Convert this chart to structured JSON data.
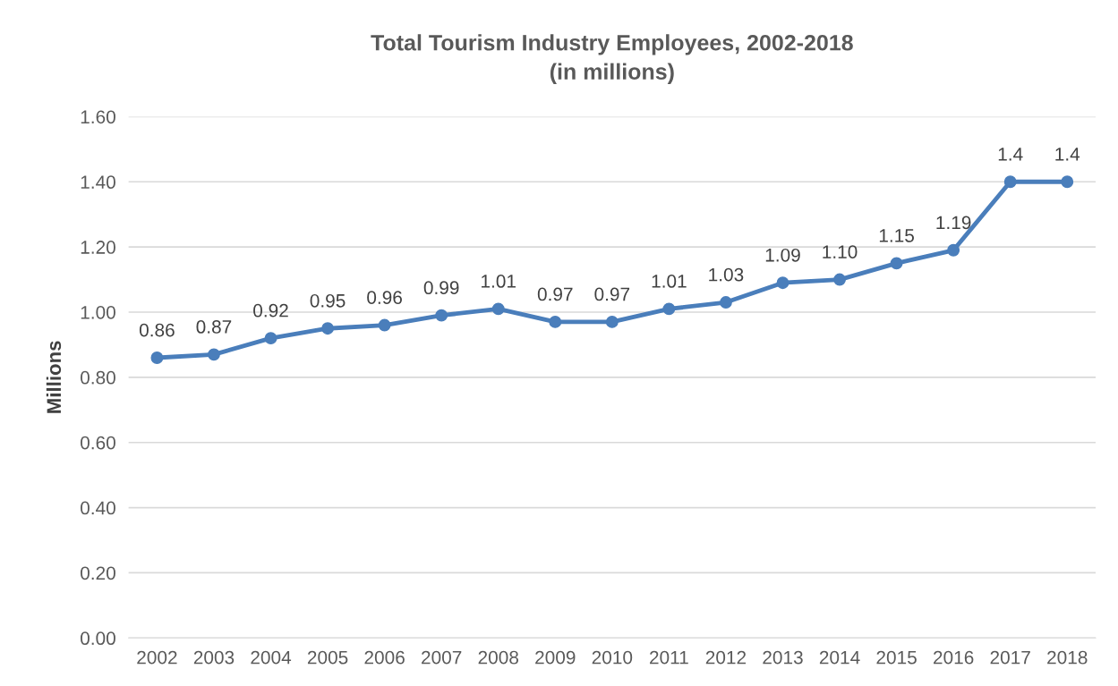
{
  "chart_data": {
    "type": "line",
    "title": "Total Tourism Industry Employees, 2002-2018\n(in millions)",
    "ylabel": "Millions",
    "categories": [
      "2002",
      "2003",
      "2004",
      "2005",
      "2006",
      "2007",
      "2008",
      "2009",
      "2010",
      "2011",
      "2012",
      "2013",
      "2014",
      "2015",
      "2016",
      "2017",
      "2018"
    ],
    "series": [
      {
        "color": "#4a7ebb",
        "values": [
          0.86,
          0.87,
          0.92,
          0.95,
          0.96,
          0.99,
          1.01,
          0.97,
          0.97,
          1.01,
          1.03,
          1.09,
          1.1,
          1.15,
          1.19,
          1.4,
          1.4
        ],
        "value_labels": [
          "0.86",
          "0.87",
          "0.92",
          "0.95",
          "0.96",
          "0.99",
          "1.01",
          "0.97",
          "0.97",
          "1.01",
          "1.03",
          "1.09",
          "1.10",
          "1.15",
          "1.19",
          "1.4",
          "1.4"
        ]
      }
    ],
    "ylim": [
      0,
      1.6
    ],
    "yticks": [
      {
        "value": 0,
        "label": "0.00"
      },
      {
        "value": 0.2,
        "label": "0.20"
      },
      {
        "value": 0.4,
        "label": "0.40"
      },
      {
        "value": 0.6,
        "label": "0.60"
      },
      {
        "value": 0.8,
        "label": "0.80"
      },
      {
        "value": 1.0,
        "label": "1.00"
      },
      {
        "value": 1.2,
        "label": "1.20"
      },
      {
        "value": 1.4,
        "label": "1.40"
      },
      {
        "value": 1.6,
        "label": "1.60"
      }
    ],
    "grid": "y",
    "marker": "circle",
    "line_style": "solid"
  }
}
